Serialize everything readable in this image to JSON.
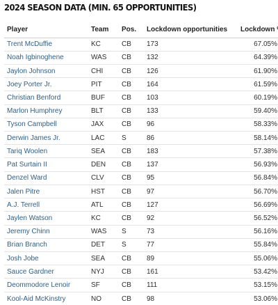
{
  "title": "2024 SEASON DATA (MIN. 65 OPPORTUNITIES)",
  "columns": {
    "player": "Player",
    "team": "Team",
    "pos": "Pos.",
    "opportunities": "Lockdown opportunities",
    "lockdown": "Lockdown %"
  },
  "rows": [
    {
      "player": "Trent McDuffie",
      "team": "KC",
      "pos": "CB",
      "opportunities": "173",
      "lockdown": "67.05%"
    },
    {
      "player": "Noah Igbinoghene",
      "team": "WAS",
      "pos": "CB",
      "opportunities": "132",
      "lockdown": "64.39%"
    },
    {
      "player": "Jaylon Johnson",
      "team": "CHI",
      "pos": "CB",
      "opportunities": "126",
      "lockdown": "61.90%"
    },
    {
      "player": "Joey Porter Jr.",
      "team": "PIT",
      "pos": "CB",
      "opportunities": "164",
      "lockdown": "61.59%"
    },
    {
      "player": "Christian Benford",
      "team": "BUF",
      "pos": "CB",
      "opportunities": "103",
      "lockdown": "60.19%"
    },
    {
      "player": "Marlon Humphrey",
      "team": "BLT",
      "pos": "CB",
      "opportunities": "133",
      "lockdown": "59.40%"
    },
    {
      "player": "Tyson Campbell",
      "team": "JAX",
      "pos": "CB",
      "opportunities": "96",
      "lockdown": "58.33%"
    },
    {
      "player": "Derwin James Jr.",
      "team": "LAC",
      "pos": "S",
      "opportunities": "86",
      "lockdown": "58.14%"
    },
    {
      "player": "Tariq Woolen",
      "team": "SEA",
      "pos": "CB",
      "opportunities": "183",
      "lockdown": "57.38%"
    },
    {
      "player": "Pat Surtain II",
      "team": "DEN",
      "pos": "CB",
      "opportunities": "137",
      "lockdown": "56.93%"
    },
    {
      "player": "Denzel Ward",
      "team": "CLV",
      "pos": "CB",
      "opportunities": "95",
      "lockdown": "56.84%"
    },
    {
      "player": "Jalen Pitre",
      "team": "HST",
      "pos": "CB",
      "opportunities": "97",
      "lockdown": "56.70%"
    },
    {
      "player": "A.J. Terrell",
      "team": "ATL",
      "pos": "CB",
      "opportunities": "127",
      "lockdown": "56.69%"
    },
    {
      "player": "Jaylen Watson",
      "team": "KC",
      "pos": "CB",
      "opportunities": "92",
      "lockdown": "56.52%"
    },
    {
      "player": "Jeremy Chinn",
      "team": "WAS",
      "pos": "S",
      "opportunities": "73",
      "lockdown": "56.16%"
    },
    {
      "player": "Brian Branch",
      "team": "DET",
      "pos": "S",
      "opportunities": "77",
      "lockdown": "55.84%"
    },
    {
      "player": "Josh Jobe",
      "team": "SEA",
      "pos": "CB",
      "opportunities": "89",
      "lockdown": "55.06%"
    },
    {
      "player": "Sauce Gardner",
      "team": "NYJ",
      "pos": "CB",
      "opportunities": "161",
      "lockdown": "53.42%"
    },
    {
      "player": "Deommodore Lenoir",
      "team": "SF",
      "pos": "CB",
      "opportunities": "111",
      "lockdown": "53.15%"
    },
    {
      "player": "Kool-Aid McKinstry",
      "team": "NO",
      "pos": "CB",
      "opportunities": "98",
      "lockdown": "53.06%"
    }
  ]
}
